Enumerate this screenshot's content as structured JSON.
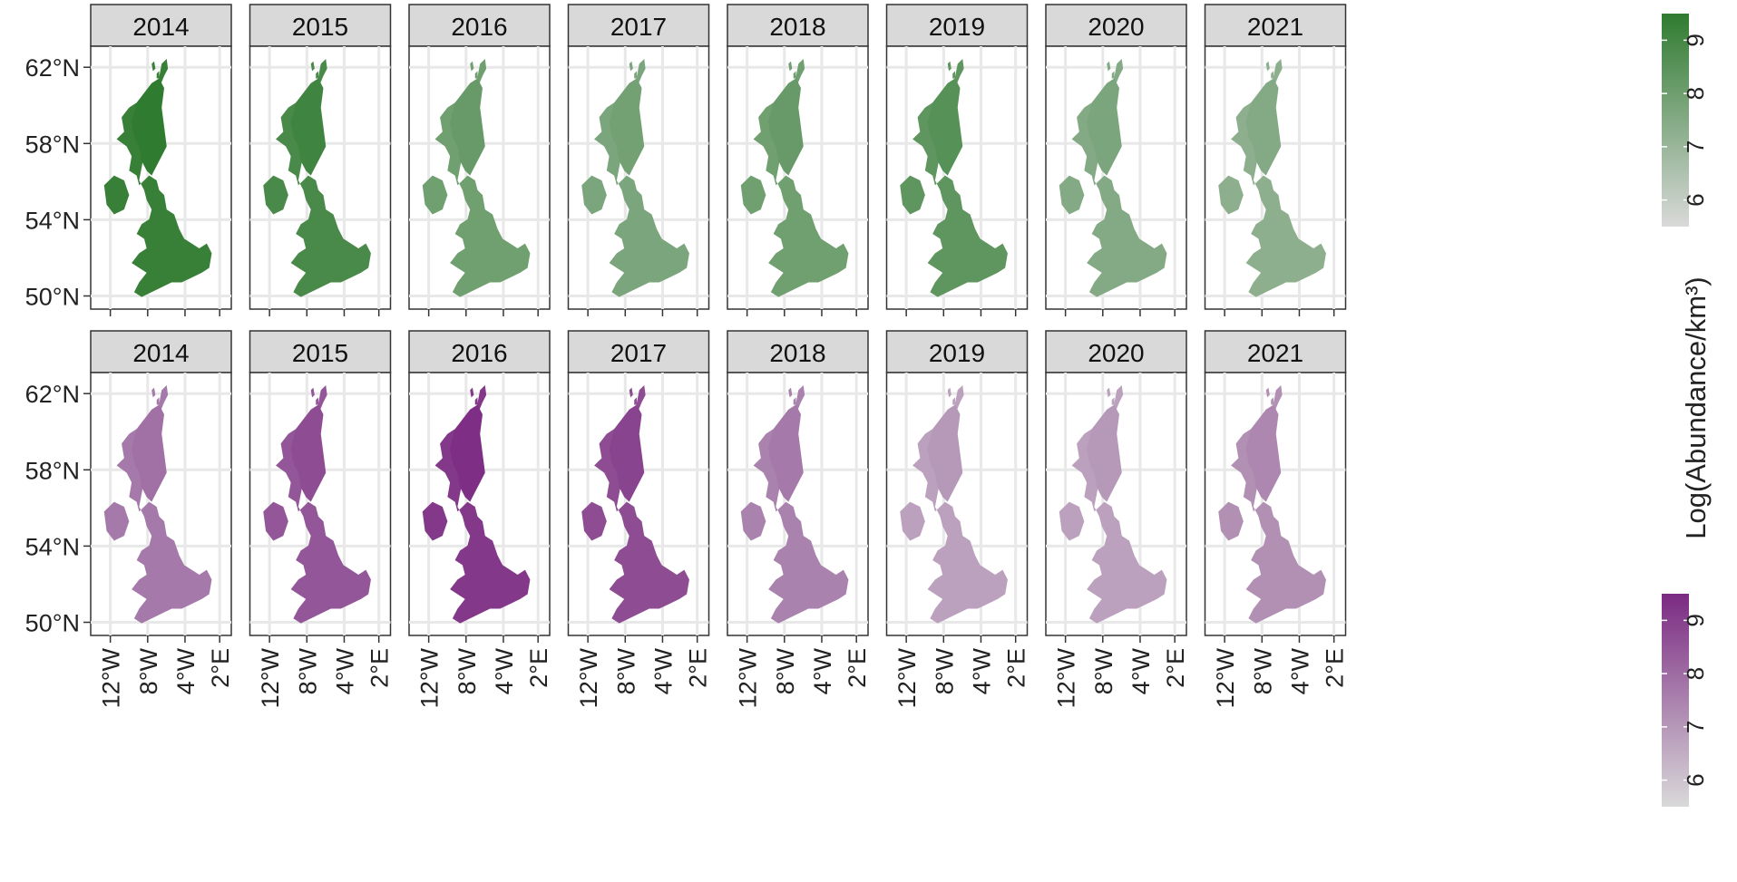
{
  "figure": {
    "legend_title": "Log(Abundance/km³)",
    "rows": [
      {
        "row_id": "green",
        "colors": {
          "low": "#d9d9d9",
          "high": "#2f7b30"
        },
        "legend_ticks": [
          "6",
          "7",
          "8",
          "9"
        ],
        "panels": [
          {
            "year": "2014",
            "level": 0.95
          },
          {
            "year": "2015",
            "level": 0.85
          },
          {
            "year": "2016",
            "level": 0.62
          },
          {
            "year": "2017",
            "level": 0.55
          },
          {
            "year": "2018",
            "level": 0.62
          },
          {
            "year": "2019",
            "level": 0.72
          },
          {
            "year": "2020",
            "level": 0.5
          },
          {
            "year": "2021",
            "level": 0.45
          }
        ]
      },
      {
        "row_id": "purple",
        "colors": {
          "low": "#d9d9d9",
          "high": "#7b2a82"
        },
        "legend_ticks": [
          "6",
          "7",
          "8",
          "9"
        ],
        "panels": [
          {
            "year": "2014",
            "level": 0.55
          },
          {
            "year": "2015",
            "level": 0.75
          },
          {
            "year": "2016",
            "level": 0.92
          },
          {
            "year": "2017",
            "level": 0.8
          },
          {
            "year": "2018",
            "level": 0.5
          },
          {
            "year": "2019",
            "level": 0.32
          },
          {
            "year": "2020",
            "level": 0.32
          },
          {
            "year": "2021",
            "level": 0.42
          }
        ]
      }
    ],
    "y_ticks": [
      "62°N",
      "58°N",
      "54°N",
      "50°N"
    ],
    "x_ticks": [
      "12°W",
      "8°W",
      "4°W",
      "2°E"
    ],
    "legend_range": [
      5.5,
      9.5
    ]
  }
}
